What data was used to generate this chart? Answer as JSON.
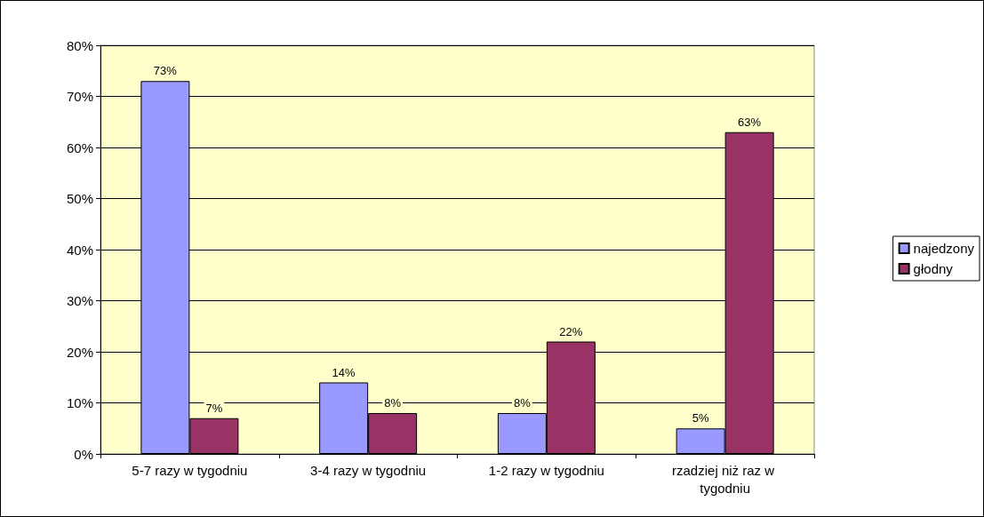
{
  "chart_data": {
    "type": "bar",
    "categories": [
      "5-7 razy w tygodniu",
      "3-4 razy w tygodniu",
      "1-2 razy w tygodniu",
      "rzadziej niż raz w tygodniu"
    ],
    "series": [
      {
        "name": "najedzony",
        "color": "#9999ff",
        "values": [
          73,
          14,
          8,
          5
        ],
        "value_labels": [
          "73%",
          "14%",
          "8%",
          "5%"
        ]
      },
      {
        "name": "głodny",
        "color": "#993366",
        "values": [
          7,
          8,
          22,
          63
        ],
        "value_labels": [
          "7%",
          "8%",
          "22%",
          "63%"
        ]
      }
    ],
    "ylim": [
      0,
      80
    ],
    "yticks": [
      {
        "value": 0,
        "label": "0%"
      },
      {
        "value": 10,
        "label": "10%"
      },
      {
        "value": 20,
        "label": "20%"
      },
      {
        "value": 30,
        "label": "30%"
      },
      {
        "value": 40,
        "label": "40%"
      },
      {
        "value": 50,
        "label": "50%"
      },
      {
        "value": 60,
        "label": "60%"
      },
      {
        "value": 70,
        "label": "70%"
      },
      {
        "value": 80,
        "label": "80%"
      }
    ],
    "grid": "y",
    "legend": "right"
  }
}
